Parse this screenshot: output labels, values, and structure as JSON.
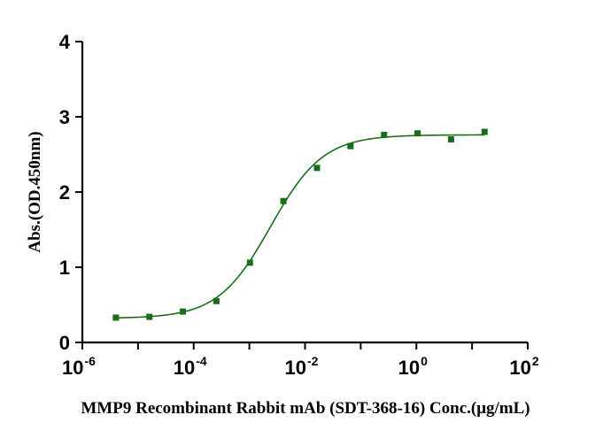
{
  "chart_data": {
    "type": "scatter",
    "xscale": "log",
    "xlim": [
      1e-06,
      100
    ],
    "ylim": [
      0,
      4
    ],
    "x_ticks": [
      {
        "base": "10",
        "exp": "-6"
      },
      {
        "base": "10",
        "exp": "-4"
      },
      {
        "base": "10",
        "exp": "-2"
      },
      {
        "base": "10",
        "exp": "0"
      },
      {
        "base": "10",
        "exp": "2"
      }
    ],
    "y_ticks": [
      "0",
      "1",
      "2",
      "3",
      "4"
    ],
    "xlabel": "MMP9 Recombinant Rabbit mAb (SDT-368-16) Conc.(μg/mL)",
    "ylabel": "Abs.(OD.450nm)",
    "series": [
      {
        "x": [
          4e-06,
          1.6e-05,
          6.4e-05,
          0.000256,
          0.001024,
          0.004096,
          0.016384,
          0.065536,
          0.262144,
          1.048576,
          4.194304,
          16.777216
        ],
        "y": [
          0.33,
          0.34,
          0.41,
          0.55,
          1.06,
          1.88,
          2.32,
          2.61,
          2.76,
          2.78,
          2.7,
          2.8
        ],
        "fit": {
          "model": "4PL",
          "bottom": 0.32,
          "top": 2.76,
          "log_ec50": -2.62,
          "hill": 0.92
        }
      }
    ],
    "colors": {
      "marker": "#1a6e1a",
      "curve": "#1a6e1a"
    }
  }
}
